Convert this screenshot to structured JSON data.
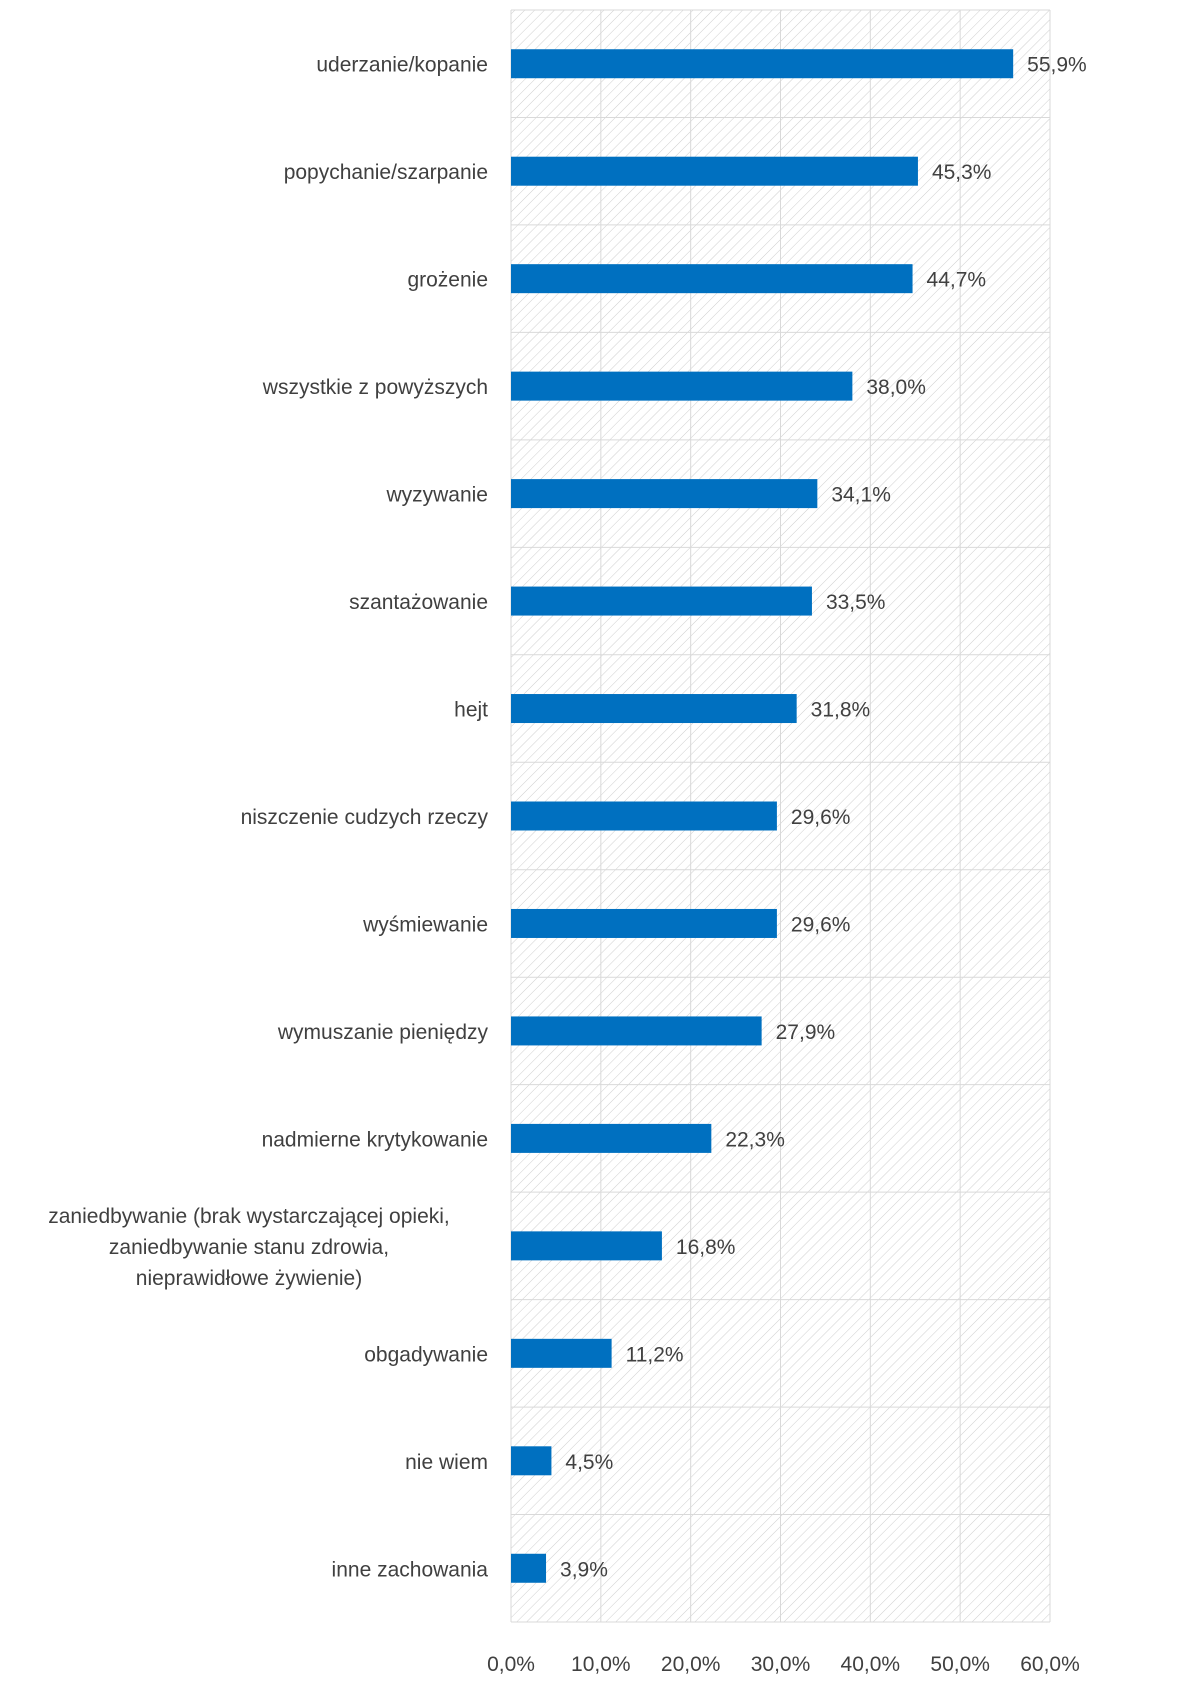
{
  "chart_data": {
    "type": "bar",
    "orientation": "horizontal",
    "categories": [
      "uderzanie/kopanie",
      "popychanie/szarpanie",
      "grożenie",
      "wszystkie z powyższych",
      "wyzywanie",
      "szantażowanie",
      "hejt",
      "niszczenie cudzych rzeczy",
      "wyśmiewanie",
      "wymuszanie pieniędzy",
      "nadmierne krytykowanie",
      [
        "zaniedbywanie (brak wystarczającej opieki,",
        "zaniedbywanie stanu zdrowia,",
        "nieprawidłowe żywienie)"
      ],
      "obgadywanie",
      "nie wiem",
      "inne zachowania"
    ],
    "values": [
      55.9,
      45.3,
      44.7,
      38.0,
      34.1,
      33.5,
      31.8,
      29.6,
      29.6,
      27.9,
      22.3,
      16.8,
      11.2,
      4.5,
      3.9
    ],
    "value_labels": [
      "55,9%",
      "45,3%",
      "44,7%",
      "38,0%",
      "34,1%",
      "33,5%",
      "31,8%",
      "29,6%",
      "29,6%",
      "27,9%",
      "22,3%",
      "16,8%",
      "11,2%",
      "4,5%",
      "3,9%"
    ],
    "x_ticks": [
      0,
      10,
      20,
      30,
      40,
      50,
      60
    ],
    "x_tick_labels": [
      "0,0%",
      "10,0%",
      "20,0%",
      "30,0%",
      "40,0%",
      "50,0%",
      "60,0%"
    ],
    "xlim": [
      0,
      60
    ],
    "title": "",
    "xlabel": "",
    "ylabel": "",
    "grid": true,
    "bar_color": "#0070C0",
    "grid_color": "#D9D9D9",
    "text_color": "#404040"
  }
}
